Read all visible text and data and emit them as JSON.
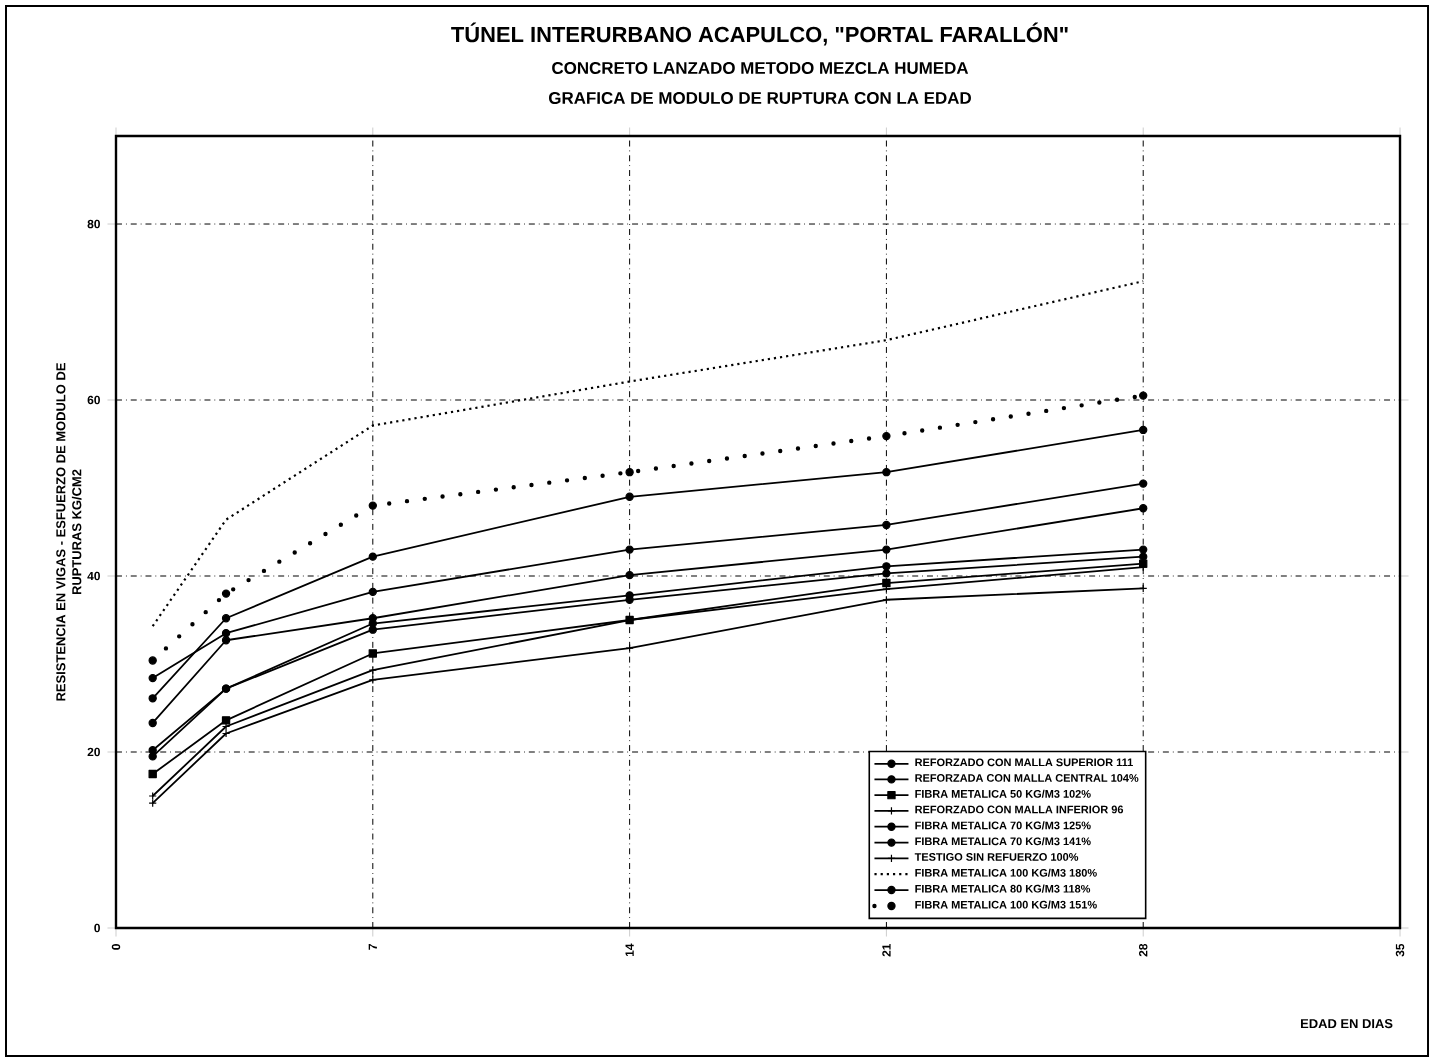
{
  "chart_data": {
    "type": "line",
    "title": "TÚNEL INTERURBANO ACAPULCO, \"PORTAL FARALLÓN\"",
    "subtitle": "CONCRETO LANZADO METODO MEZCLA HUMEDA",
    "annotations": [
      "GRAFICA DE MODULO DE RUPTURA CON LA EDAD"
    ],
    "xlabel": "EDAD EN DIAS",
    "ylabel": "RESISTENCIA EN VIGAS - ESFUERZO DE MODULO DE RUPTURAS KG/CM2",
    "x": [
      1,
      3,
      7,
      14,
      21,
      28
    ],
    "xlim": [
      0,
      35
    ],
    "ylim": [
      0,
      90
    ],
    "xticks": [
      0,
      7,
      14,
      21,
      28,
      35
    ],
    "yticks": [
      0,
      20,
      40,
      60,
      80
    ],
    "grid": true,
    "legend": "bottom right",
    "series": [
      {
        "name": "REFORZADO CON MALLA SUPERIOR 111",
        "color": "#000000",
        "marker": "circle",
        "line_style": "solid",
        "values": [
          26.1,
          35.2,
          42.2,
          49,
          51.8,
          56.6
        ]
      },
      {
        "name": "REFORZADA CON MALLA CENTRAL 104%",
        "color": "#000000",
        "marker": "circle",
        "line_style": "solid",
        "values": [
          28.4,
          33.5,
          38.2,
          43,
          45.8,
          50.5
        ]
      },
      {
        "name": "FIBRA METALICA 50 KG/M3 102%",
        "color": "#000000",
        "marker": "square",
        "line_style": "solid",
        "values": [
          17.5,
          23.6,
          31.2,
          35,
          39.2,
          41.4
        ]
      },
      {
        "name": "REFORZADO CON MALLA INFERIOR 96",
        "color": "#000000",
        "marker": "cross",
        "line_style": "solid",
        "values": [
          15,
          22.9,
          29.3,
          35,
          38.5,
          41
        ]
      },
      {
        "name": "FIBRA METALICA 70 KG/M3 125%",
        "color": "#000000",
        "marker": "circle",
        "line_style": "solid",
        "values": [
          20.2,
          27.2,
          34.6,
          37.8,
          41.1,
          43
        ]
      },
      {
        "name": "FIBRA METALICA 70 KG/M3 141%",
        "color": "#000000",
        "marker": "circle",
        "line_style": "solid",
        "values": [
          19.5,
          27.2,
          33.9,
          37.3,
          40.3,
          42.2
        ]
      },
      {
        "name": "TESTIGO SIN REFUERZO 100%",
        "color": "#000000",
        "marker": "cross",
        "line_style": "solid",
        "values": [
          14.2,
          22.1,
          28.2,
          31.8,
          37.3,
          38.6
        ]
      },
      {
        "name": "FIBRA METALICA 100 KG/M3 180%",
        "color": "#000000",
        "marker": "none",
        "line_style": "dotted",
        "values": [
          34.3,
          46.4,
          57.1,
          62.1,
          66.8,
          73.5
        ]
      },
      {
        "name": "FIBRA METALICA 80 KG/M3 118%",
        "color": "#000000",
        "marker": "circle",
        "line_style": "solid",
        "values": [
          23.3,
          32.7,
          35.2,
          40.1,
          43,
          47.7
        ]
      },
      {
        "name": "FIBRA METALICA 100 KG/M3 151%",
        "color": "#000000",
        "marker": "circle",
        "line_style": "dashed",
        "values": [
          30.4,
          38,
          48,
          51.8,
          55.9,
          60.5
        ]
      }
    ]
  }
}
